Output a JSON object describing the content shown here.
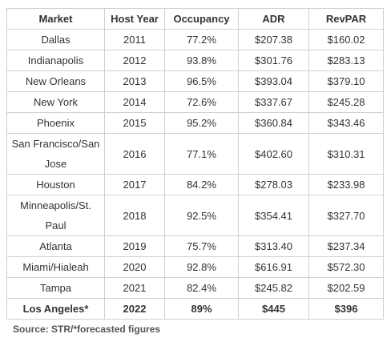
{
  "table": {
    "header": [
      "Market",
      "Host Year",
      "Occupancy",
      "ADR",
      "RevPAR"
    ],
    "rows": [
      [
        "Dallas",
        "2011",
        "77.2%",
        "$207.38",
        "$160.02"
      ],
      [
        "Indianapolis",
        "2012",
        "93.8%",
        "$301.76",
        "$283.13"
      ],
      [
        "New Orleans",
        "2013",
        "96.5%",
        "$393.04",
        "$379.10"
      ],
      [
        "New York",
        "2014",
        "72.6%",
        "$337.67",
        "$245.28"
      ],
      [
        "Phoenix",
        "2015",
        "95.2%",
        "$360.84",
        "$343.46"
      ],
      [
        "San Francisco/San Jose",
        "2016",
        "77.1%",
        "$402.60",
        "$310.31"
      ],
      [
        "Houston",
        "2017",
        "84.2%",
        "$278.03",
        "$233.98"
      ],
      [
        "Minneapolis/St. Paul",
        "2018",
        "92.5%",
        "$354.41",
        "$327.70"
      ],
      [
        "Atlanta",
        "2019",
        "75.7%",
        "$313.40",
        "$237.34"
      ],
      [
        "Miami/Hialeah",
        "2020",
        "92.8%",
        "$616.91",
        "$572.30"
      ],
      [
        "Tampa",
        "2021",
        "82.4%",
        "$245.82",
        "$202.59"
      ],
      [
        "Los Angeles*",
        "2022",
        "89%",
        "$445",
        "$396"
      ]
    ]
  },
  "source": "Source: STR/*forecasted figures"
}
